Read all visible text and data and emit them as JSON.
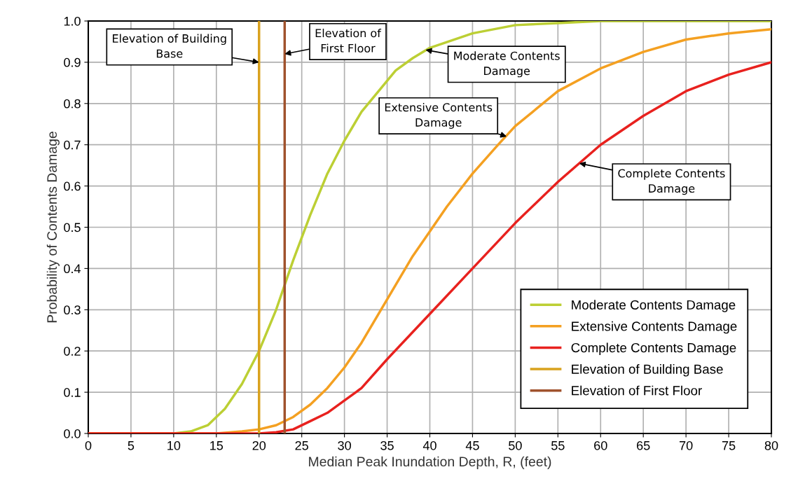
{
  "chart_data": {
    "type": "line",
    "xlabel": "Median Peak Inundation Depth, R, (feet)",
    "ylabel": "Probability of Contents Damage",
    "xlim": [
      0,
      80
    ],
    "xticks": [
      0,
      5,
      10,
      15,
      20,
      25,
      30,
      35,
      40,
      45,
      50,
      55,
      60,
      65,
      70,
      75,
      80
    ],
    "ylim": [
      0,
      1.0
    ],
    "yticks": [
      {
        "value": 0,
        "label": "0.0"
      },
      0.1,
      0.2,
      0.3,
      0.4,
      0.5,
      0.6,
      0.7,
      0.8,
      0.9,
      {
        "value": 1.0,
        "label": "1.0"
      }
    ],
    "grid": true,
    "legend": "bottom right",
    "marker": "none",
    "line_style": "solid",
    "series": [
      {
        "name": "Moderate Contents Damage",
        "color": "#bccf34",
        "x": [
          0,
          10,
          12,
          14,
          15,
          16,
          18,
          20,
          22,
          24,
          26,
          28,
          30,
          32,
          34,
          36,
          38,
          40,
          45,
          50,
          55,
          60,
          80
        ],
        "values": [
          0,
          0,
          0.005,
          0.02,
          0.04,
          0.06,
          0.12,
          0.2,
          0.3,
          0.42,
          0.53,
          0.63,
          0.71,
          0.78,
          0.83,
          0.88,
          0.91,
          0.935,
          0.97,
          0.99,
          0.995,
          1.0,
          1.0
        ]
      },
      {
        "name": "Extensive Contents Damage",
        "color": "#f4a021",
        "x": [
          0,
          15,
          18,
          20,
          22,
          24,
          26,
          28,
          30,
          32,
          34,
          36,
          38,
          40,
          42,
          45,
          48,
          50,
          55,
          60,
          65,
          70,
          75,
          80
        ],
        "values": [
          0,
          0,
          0.005,
          0.01,
          0.02,
          0.04,
          0.07,
          0.11,
          0.16,
          0.22,
          0.29,
          0.36,
          0.43,
          0.49,
          0.55,
          0.63,
          0.7,
          0.745,
          0.83,
          0.885,
          0.925,
          0.955,
          0.97,
          0.98
        ]
      },
      {
        "name": "Complete Contents Damage",
        "color": "#e8211e",
        "x": [
          0,
          20,
          22,
          24,
          26,
          28,
          30,
          32,
          35,
          40,
          45,
          50,
          55,
          60,
          65,
          70,
          75,
          80
        ],
        "values": [
          0,
          0,
          0.003,
          0.01,
          0.03,
          0.05,
          0.08,
          0.11,
          0.18,
          0.29,
          0.4,
          0.51,
          0.61,
          0.7,
          0.77,
          0.83,
          0.87,
          0.9
        ]
      },
      {
        "name": "Elevation of Building Base",
        "color": "#d9a21e",
        "x": [
          20,
          20
        ],
        "values": [
          0,
          1.0
        ]
      },
      {
        "name": "Elevation of First Floor",
        "color": "#a0522d",
        "x": [
          23,
          23
        ],
        "values": [
          0,
          1.0
        ]
      }
    ],
    "annotations": [
      {
        "text": "Elevation of Building\nBase",
        "x": 20,
        "y": 0.9
      },
      {
        "text": "Elevation of\nFirst Floor",
        "x": 23,
        "y": 0.92
      },
      {
        "text": "Moderate Contents\nDamage",
        "x": 39.5,
        "y": 0.93
      },
      {
        "text": "Extensive Contents\nDamage",
        "x": 49,
        "y": 0.72
      },
      {
        "text": "Complete Contents\nDamage",
        "x": 57.5,
        "y": 0.655
      }
    ]
  }
}
